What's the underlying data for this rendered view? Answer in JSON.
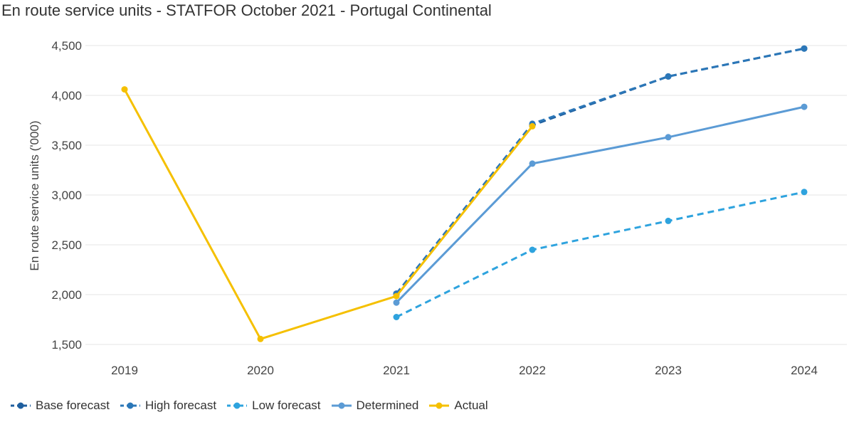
{
  "chart_data": {
    "type": "line",
    "title": "En route service units - STATFOR October 2021 - Portugal Continental",
    "ylabel": "En route service units ('000)",
    "xlabel": "",
    "categories": [
      "2019",
      "2020",
      "2021",
      "2022",
      "2023",
      "2024"
    ],
    "ylim": [
      1500,
      4500
    ],
    "yticks": [
      1500,
      2000,
      2500,
      3000,
      3500,
      4000,
      4500
    ],
    "ytick_labels": [
      "1,500",
      "2,000",
      "2,500",
      "3,000",
      "3,500",
      "4,000",
      "4,500"
    ],
    "grid": true,
    "legend_position": "bottom-left",
    "series": [
      {
        "name": "Base forecast",
        "color": "#1f5f9f",
        "dashed": true,
        "values": [
          null,
          null,
          2010,
          3700,
          4190,
          4470
        ]
      },
      {
        "name": "High forecast",
        "color": "#2b77b8",
        "dashed": true,
        "values": [
          null,
          null,
          2010,
          3715,
          4190,
          4470
        ]
      },
      {
        "name": "Low forecast",
        "color": "#2ea3de",
        "dashed": true,
        "values": [
          null,
          null,
          1775,
          2450,
          2740,
          3030
        ]
      },
      {
        "name": "Determined",
        "color": "#5b9bd5",
        "dashed": false,
        "values": [
          null,
          null,
          1920,
          3315,
          3580,
          3885
        ]
      },
      {
        "name": "Actual",
        "color": "#f5c000",
        "dashed": false,
        "values": [
          4060,
          1555,
          1985,
          3690,
          null,
          null
        ]
      }
    ]
  }
}
